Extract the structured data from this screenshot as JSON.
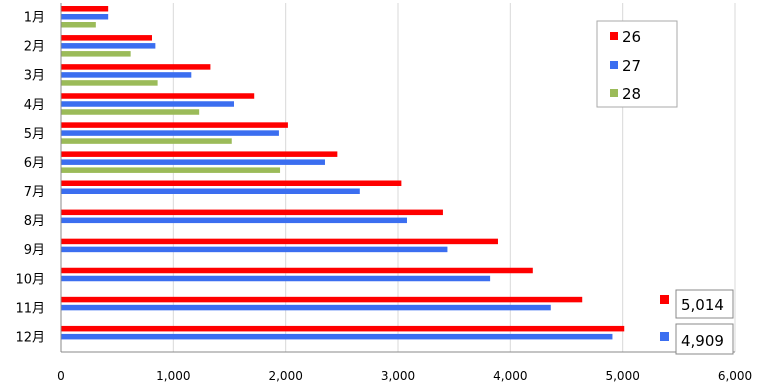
{
  "chart_data": {
    "type": "bar",
    "orientation": "horizontal",
    "categories": [
      "1月",
      "2月",
      "3月",
      "4月",
      "5月",
      "6月",
      "7月",
      "8月",
      "9月",
      "10月",
      "11月",
      "12月"
    ],
    "series": [
      {
        "name": "26",
        "color": "#ff0000",
        "values": [
          420,
          810,
          1330,
          1720,
          2020,
          2460,
          3030,
          3400,
          3890,
          4200,
          4640,
          5014
        ]
      },
      {
        "name": "27",
        "color": "#3b6ef0",
        "values": [
          420,
          840,
          1160,
          1540,
          1940,
          2350,
          2660,
          3080,
          3440,
          3820,
          4360,
          4909
        ]
      },
      {
        "name": "28",
        "color": "#9bbb59",
        "values": [
          310,
          620,
          860,
          1230,
          1520,
          1950,
          null,
          null,
          null,
          null,
          null,
          null
        ]
      }
    ],
    "xlim": [
      0,
      6000
    ],
    "xticks": [
      0,
      1000,
      2000,
      3000,
      4000,
      5000,
      6000
    ],
    "xtick_labels": [
      "0",
      "1,000",
      "2,000",
      "3,000",
      "4,000",
      "5,000",
      "6,000"
    ],
    "grid": "vertical",
    "legend": {
      "placement": "top-right",
      "entries": [
        "26",
        "27",
        "28"
      ]
    },
    "annotations": [
      {
        "text": "5,014",
        "series": "26"
      },
      {
        "text": "4,909",
        "series": "27"
      }
    ]
  }
}
